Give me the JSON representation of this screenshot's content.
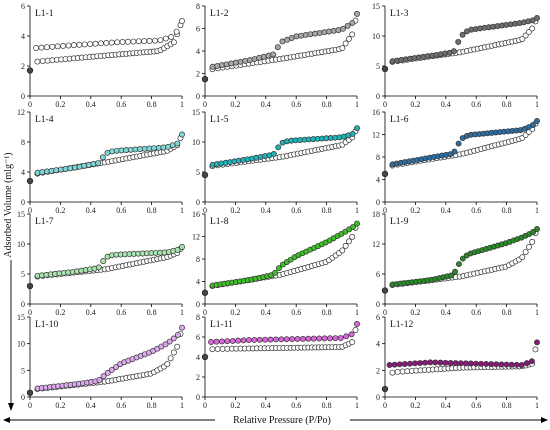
{
  "figure": {
    "ylabel": "Adsorbed Volume (mlg⁻¹)",
    "xlabel": "Relative Pressure (P/Po)"
  },
  "chart_data": [
    {
      "type": "scatter",
      "title": "L1-1",
      "xlim": [
        0,
        1
      ],
      "ylim": [
        0,
        6
      ],
      "yticks": [
        0,
        2,
        4,
        6
      ],
      "xticks": [
        0,
        0.2,
        0.4,
        0.6,
        0.8,
        1
      ],
      "color": "#ffffff",
      "style": "flat",
      "points": {
        "ads": [
          [
            0,
            1.7
          ],
          [
            0.01,
            2.1
          ],
          [
            0.05,
            2.3
          ],
          [
            0.5,
            2.7
          ],
          [
            0.85,
            3.0
          ],
          [
            0.95,
            3.6
          ],
          [
            1,
            5.0
          ]
        ],
        "des": [
          [
            0.04,
            3.2
          ],
          [
            0.3,
            3.4
          ],
          [
            0.6,
            3.6
          ],
          [
            0.85,
            3.7
          ],
          [
            0.95,
            4.0
          ],
          [
            1,
            5.0
          ]
        ],
        "n_des": 28
      }
    },
    {
      "type": "scatter",
      "title": "L1-2",
      "xlim": [
        0,
        1
      ],
      "ylim": [
        0,
        8
      ],
      "yticks": [
        0,
        2,
        4,
        6,
        8
      ],
      "xticks": [
        0,
        0.2,
        0.4,
        0.6,
        0.8,
        1
      ],
      "color": "#a6a6a6",
      "style": "hyst",
      "points": {
        "ads": [
          [
            0,
            1.5
          ],
          [
            0.02,
            2.1
          ],
          [
            0.05,
            2.4
          ],
          [
            0.5,
            3.3
          ],
          [
            0.9,
            4.2
          ],
          [
            0.97,
            5.5
          ],
          [
            1,
            7.3
          ]
        ],
        "des": [
          [
            0.05,
            2.6
          ],
          [
            0.3,
            3.2
          ],
          [
            0.45,
            3.7
          ],
          [
            0.5,
            4.8
          ],
          [
            0.6,
            5.3
          ],
          [
            0.9,
            5.9
          ],
          [
            0.97,
            6.5
          ],
          [
            1,
            7.3
          ]
        ],
        "n_des": 32
      }
    },
    {
      "type": "scatter",
      "title": "L1-3",
      "xlim": [
        0,
        1
      ],
      "ylim": [
        0,
        15
      ],
      "yticks": [
        0,
        5,
        10,
        15
      ],
      "xticks": [
        0,
        0.2,
        0.4,
        0.6,
        0.8,
        1
      ],
      "color": "#6e6e6e",
      "style": "hyst",
      "points": {
        "ads": [
          [
            0,
            4.5
          ],
          [
            0.02,
            5.2
          ],
          [
            0.05,
            5.7
          ],
          [
            0.5,
            7.3
          ],
          [
            0.9,
            9.4
          ],
          [
            0.97,
            11.3
          ],
          [
            1,
            13.0
          ]
        ],
        "des": [
          [
            0.05,
            5.8
          ],
          [
            0.3,
            6.7
          ],
          [
            0.45,
            7.3
          ],
          [
            0.5,
            10.0
          ],
          [
            0.55,
            11.0
          ],
          [
            0.9,
            12.2
          ],
          [
            0.97,
            12.6
          ],
          [
            1,
            13.0
          ]
        ],
        "n_des": 34
      }
    },
    {
      "type": "scatter",
      "title": "L1-4",
      "xlim": [
        0,
        1
      ],
      "ylim": [
        0,
        12
      ],
      "yticks": [
        0,
        4,
        8,
        12
      ],
      "xticks": [
        0,
        0.2,
        0.4,
        0.6,
        0.8,
        1
      ],
      "color": "#7fd8d8",
      "style": "hyst",
      "points": {
        "ads": [
          [
            0,
            2.8
          ],
          [
            0.02,
            3.4
          ],
          [
            0.05,
            3.8
          ],
          [
            0.5,
            5.3
          ],
          [
            0.9,
            6.8
          ],
          [
            0.97,
            7.6
          ],
          [
            1,
            9.0
          ]
        ],
        "des": [
          [
            0.05,
            3.9
          ],
          [
            0.3,
            4.6
          ],
          [
            0.45,
            5.2
          ],
          [
            0.5,
            6.5
          ],
          [
            0.55,
            6.8
          ],
          [
            0.9,
            7.3
          ],
          [
            0.97,
            7.8
          ],
          [
            1,
            9.0
          ]
        ],
        "n_des": 32
      }
    },
    {
      "type": "scatter",
      "title": "L1-5",
      "xlim": [
        0,
        1
      ],
      "ylim": [
        0,
        15
      ],
      "yticks": [
        0,
        5,
        10,
        15
      ],
      "xticks": [
        0,
        0.2,
        0.4,
        0.6,
        0.8,
        1
      ],
      "color": "#1fb3b8",
      "style": "hyst",
      "points": {
        "ads": [
          [
            0,
            4.5
          ],
          [
            0.02,
            5.4
          ],
          [
            0.05,
            6.0
          ],
          [
            0.5,
            7.5
          ],
          [
            0.9,
            9.5
          ],
          [
            0.97,
            10.8
          ],
          [
            1,
            12.3
          ]
        ],
        "des": [
          [
            0.05,
            6.2
          ],
          [
            0.3,
            7.2
          ],
          [
            0.45,
            7.9
          ],
          [
            0.5,
            9.8
          ],
          [
            0.55,
            10.2
          ],
          [
            0.9,
            10.8
          ],
          [
            0.97,
            11.3
          ],
          [
            1,
            12.3
          ]
        ],
        "n_des": 34
      }
    },
    {
      "type": "scatter",
      "title": "L1-6",
      "xlim": [
        0,
        1
      ],
      "ylim": [
        0,
        16
      ],
      "yticks": [
        0,
        4,
        8,
        12,
        16
      ],
      "xticks": [
        0,
        0.2,
        0.4,
        0.6,
        0.8,
        1
      ],
      "color": "#2d6ea3",
      "style": "hyst",
      "points": {
        "ads": [
          [
            0,
            5.0
          ],
          [
            0.02,
            6.0
          ],
          [
            0.05,
            6.5
          ],
          [
            0.5,
            8.5
          ],
          [
            0.9,
            11.3
          ],
          [
            0.97,
            13.0
          ],
          [
            1,
            14.4
          ]
        ],
        "des": [
          [
            0.05,
            6.7
          ],
          [
            0.3,
            7.9
          ],
          [
            0.45,
            8.6
          ],
          [
            0.5,
            11.2
          ],
          [
            0.55,
            11.9
          ],
          [
            0.9,
            12.8
          ],
          [
            0.97,
            13.6
          ],
          [
            1,
            14.4
          ]
        ],
        "n_des": 36
      }
    },
    {
      "type": "scatter",
      "title": "L1-7",
      "xlim": [
        0,
        1
      ],
      "ylim": [
        0,
        15
      ],
      "yticks": [
        0,
        5,
        10,
        15
      ],
      "xticks": [
        0,
        0.2,
        0.4,
        0.6,
        0.8,
        1
      ],
      "color": "#a8e3b0",
      "style": "hyst",
      "points": {
        "ads": [
          [
            0,
            3.0
          ],
          [
            0.02,
            4.0
          ],
          [
            0.05,
            4.6
          ],
          [
            0.5,
            5.8
          ],
          [
            0.9,
            7.8
          ],
          [
            0.97,
            8.5
          ],
          [
            1,
            9.5
          ]
        ],
        "des": [
          [
            0.05,
            4.7
          ],
          [
            0.3,
            5.4
          ],
          [
            0.45,
            6.0
          ],
          [
            0.5,
            7.8
          ],
          [
            0.55,
            8.2
          ],
          [
            0.9,
            8.6
          ],
          [
            0.97,
            9.0
          ],
          [
            1,
            9.5
          ]
        ],
        "n_des": 34
      }
    },
    {
      "type": "scatter",
      "title": "L1-8",
      "xlim": [
        0,
        1
      ],
      "ylim": [
        0,
        16
      ],
      "yticks": [
        0,
        4,
        8,
        12,
        16
      ],
      "xticks": [
        0,
        0.2,
        0.4,
        0.6,
        0.8,
        1
      ],
      "color": "#3fbf2a",
      "style": "hyst",
      "points": {
        "ads": [
          [
            0,
            2.0
          ],
          [
            0.02,
            2.8
          ],
          [
            0.05,
            3.2
          ],
          [
            0.5,
            5.2
          ],
          [
            0.8,
            7.5
          ],
          [
            0.9,
            9.4
          ],
          [
            0.97,
            12.0
          ],
          [
            1,
            14.3
          ]
        ],
        "des": [
          [
            0.05,
            3.3
          ],
          [
            0.3,
            4.3
          ],
          [
            0.45,
            5.2
          ],
          [
            0.5,
            6.8
          ],
          [
            0.6,
            8.5
          ],
          [
            0.8,
            11.0
          ],
          [
            0.9,
            12.5
          ],
          [
            0.97,
            13.6
          ],
          [
            1,
            14.3
          ]
        ],
        "n_des": 38
      }
    },
    {
      "type": "scatter",
      "title": "L1-9",
      "xlim": [
        0,
        1
      ],
      "ylim": [
        0,
        18
      ],
      "yticks": [
        0,
        6,
        12,
        18
      ],
      "xticks": [
        0,
        0.2,
        0.4,
        0.6,
        0.8,
        1
      ],
      "color": "#2a8a2a",
      "style": "hyst",
      "points": {
        "ads": [
          [
            0,
            2.7
          ],
          [
            0.02,
            3.5
          ],
          [
            0.05,
            3.8
          ],
          [
            0.5,
            5.5
          ],
          [
            0.8,
            7.5
          ],
          [
            0.9,
            9.2
          ],
          [
            0.97,
            12.5
          ],
          [
            1,
            15.0
          ]
        ],
        "des": [
          [
            0.05,
            3.9
          ],
          [
            0.3,
            4.8
          ],
          [
            0.45,
            5.8
          ],
          [
            0.5,
            8.8
          ],
          [
            0.55,
            10.0
          ],
          [
            0.8,
            12.2
          ],
          [
            0.9,
            13.3
          ],
          [
            0.97,
            14.3
          ],
          [
            1,
            15.0
          ]
        ],
        "n_des": 38
      }
    },
    {
      "type": "scatter",
      "title": "L1-10",
      "xlim": [
        0,
        1
      ],
      "ylim": [
        0,
        15
      ],
      "yticks": [
        0,
        5,
        10,
        15
      ],
      "xticks": [
        0,
        0.2,
        0.4,
        0.6,
        0.8,
        1
      ],
      "color": "#ddaaee",
      "style": "hyst",
      "points": {
        "ads": [
          [
            0,
            0.8
          ],
          [
            0.02,
            1.2
          ],
          [
            0.05,
            1.5
          ],
          [
            0.5,
            2.9
          ],
          [
            0.8,
            4.4
          ],
          [
            0.9,
            6.0
          ],
          [
            0.97,
            9.5
          ],
          [
            1,
            13.0
          ]
        ],
        "des": [
          [
            0.05,
            1.6
          ],
          [
            0.3,
            2.4
          ],
          [
            0.45,
            3.0
          ],
          [
            0.5,
            4.3
          ],
          [
            0.6,
            6.3
          ],
          [
            0.8,
            8.5
          ],
          [
            0.9,
            10.0
          ],
          [
            0.97,
            11.5
          ],
          [
            1,
            13.0
          ]
        ],
        "n_des": 36
      }
    },
    {
      "type": "scatter",
      "title": "L1-11",
      "xlim": [
        0,
        1
      ],
      "ylim": [
        0,
        8
      ],
      "yticks": [
        0,
        2,
        4,
        6,
        8
      ],
      "xticks": [
        0,
        0.2,
        0.4,
        0.6,
        0.8,
        1
      ],
      "color": "#d966dd",
      "style": "flat",
      "points": {
        "ads": [
          [
            0,
            4.0
          ],
          [
            0.01,
            4.3
          ],
          [
            0.05,
            4.8
          ],
          [
            0.5,
            4.9
          ],
          [
            0.9,
            5.0
          ],
          [
            0.97,
            5.5
          ],
          [
            1,
            7.3
          ]
        ],
        "des": [
          [
            0.04,
            5.5
          ],
          [
            0.3,
            5.7
          ],
          [
            0.6,
            5.8
          ],
          [
            0.9,
            5.9
          ],
          [
            0.97,
            6.3
          ],
          [
            1,
            7.3
          ]
        ],
        "n_des": 28
      }
    },
    {
      "type": "scatter",
      "title": "L1-12",
      "xlim": [
        0,
        1
      ],
      "ylim": [
        0,
        6
      ],
      "yticks": [
        0,
        2,
        4,
        6
      ],
      "xticks": [
        0,
        0.2,
        0.4,
        0.6,
        0.8,
        1
      ],
      "color": "#8a1a7a",
      "style": "flat",
      "points": {
        "ads": [
          [
            0,
            0.6
          ],
          [
            0.01,
            1.2
          ],
          [
            0.03,
            1.8
          ],
          [
            0.1,
            1.9
          ],
          [
            0.5,
            2.2
          ],
          [
            0.9,
            2.3
          ],
          [
            0.97,
            2.5
          ],
          [
            1,
            4.1
          ]
        ],
        "des": [
          [
            0.03,
            2.4
          ],
          [
            0.3,
            2.6
          ],
          [
            0.6,
            2.5
          ],
          [
            0.9,
            2.4
          ],
          [
            0.97,
            2.7
          ],
          [
            1,
            4.1
          ]
        ],
        "n_des": 30
      }
    }
  ]
}
